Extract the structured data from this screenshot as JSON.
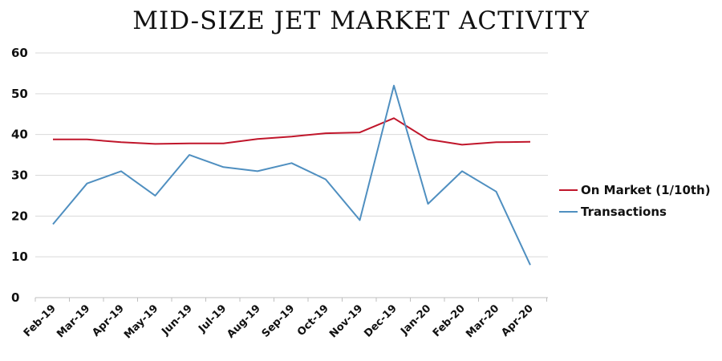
{
  "chart_data": {
    "type": "line",
    "title": "MID-SIZE JET MARKET ACTIVITY",
    "xlabel": "",
    "ylabel": "",
    "categories": [
      "Feb-19",
      "Mar-19",
      "Apr-19",
      "May-19",
      "Jun-19",
      "Jul-19",
      "Aug-19",
      "Sep-19",
      "Oct-19",
      "Nov-19",
      "Dec-19",
      "Jan-20",
      "Feb-20",
      "Mar-20",
      "Apr-20"
    ],
    "ylim": [
      0,
      60
    ],
    "yticks": [
      0,
      10,
      20,
      30,
      40,
      50,
      60
    ],
    "grid": true,
    "legend_position": "right",
    "series": [
      {
        "name": "On Market (1/10th)",
        "color": "#c0162b",
        "values": [
          38.8,
          38.8,
          38.1,
          37.7,
          37.8,
          37.8,
          38.9,
          39.5,
          40.3,
          40.5,
          44.0,
          38.8,
          37.5,
          38.1,
          38.2
        ]
      },
      {
        "name": "Transactions",
        "color": "#4f8fc0",
        "values": [
          18,
          28,
          31,
          25,
          35,
          32,
          31,
          33,
          29,
          19,
          52,
          23,
          31,
          26,
          8
        ]
      }
    ]
  }
}
